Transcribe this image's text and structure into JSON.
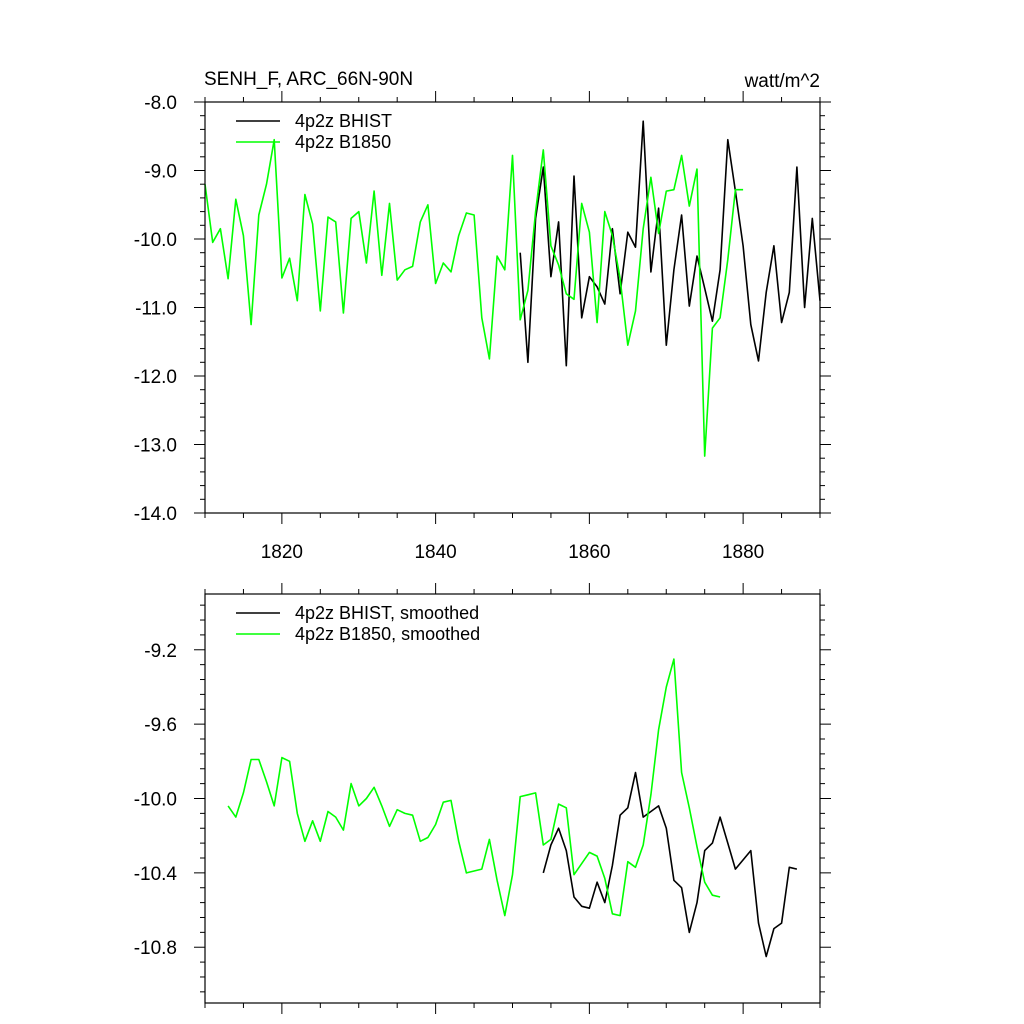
{
  "colors": {
    "bhist": "#000000",
    "b1850": "#00ff00"
  },
  "chart_data": [
    {
      "type": "line",
      "title": "SENH_F, ARC_66N-90N",
      "units": "watt/m^2",
      "xlabel": "",
      "ylabel": "",
      "xlim": [
        1810,
        1890
      ],
      "ylim": [
        -14.0,
        -8.0
      ],
      "xticks": [
        1820,
        1840,
        1860,
        1880
      ],
      "xtick_labels": [
        "1820",
        "1840",
        "1860",
        "1880"
      ],
      "yticks": [
        -8.0,
        -9.0,
        -10.0,
        -11.0,
        -12.0,
        -13.0,
        -14.0
      ],
      "ytick_labels": [
        "-8.0",
        "-9.0",
        "-10.0",
        "-11.0",
        "-12.0",
        "-13.0",
        "-14.0"
      ],
      "grid": false,
      "legend_position": "top-left",
      "series": [
        {
          "name": "4p2z BHIST",
          "color": "#000000",
          "x": [
            1851,
            1852,
            1853,
            1854,
            1855,
            1856,
            1857,
            1858,
            1859,
            1860,
            1861,
            1862,
            1863,
            1864,
            1865,
            1866,
            1867,
            1868,
            1869,
            1870,
            1871,
            1872,
            1873,
            1874,
            1875,
            1876,
            1877,
            1878,
            1879,
            1880,
            1881,
            1882,
            1883,
            1884,
            1885,
            1886,
            1887,
            1888,
            1889,
            1890
          ],
          "y": [
            -10.2,
            -11.8,
            -9.7,
            -8.95,
            -10.55,
            -9.75,
            -11.85,
            -9.08,
            -11.15,
            -10.55,
            -10.7,
            -10.95,
            -9.85,
            -10.8,
            -9.9,
            -10.12,
            -8.28,
            -10.48,
            -9.55,
            -11.55,
            -10.45,
            -9.65,
            -10.98,
            -10.25,
            -10.72,
            -11.2,
            -10.45,
            -8.55,
            -9.3,
            -10.1,
            -11.25,
            -11.78,
            -10.78,
            -10.1,
            -11.22,
            -10.78,
            -8.95,
            -11.0,
            -9.7,
            -10.9
          ]
        },
        {
          "name": "4p2z B1850",
          "color": "#00ff00",
          "x": [
            1810,
            1811,
            1812,
            1813,
            1814,
            1815,
            1816,
            1817,
            1818,
            1819,
            1820,
            1821,
            1822,
            1823,
            1824,
            1825,
            1826,
            1827,
            1828,
            1829,
            1830,
            1831,
            1832,
            1833,
            1834,
            1835,
            1836,
            1837,
            1838,
            1839,
            1840,
            1841,
            1842,
            1843,
            1844,
            1845,
            1846,
            1847,
            1848,
            1849,
            1850,
            1851,
            1852,
            1853,
            1854,
            1855,
            1856,
            1857,
            1858,
            1859,
            1860,
            1861,
            1862,
            1863,
            1864,
            1865,
            1866,
            1867,
            1868,
            1869,
            1870,
            1871,
            1872,
            1873,
            1874,
            1875,
            1876,
            1877,
            1878,
            1879,
            1880
          ],
          "y": [
            -9.2,
            -10.05,
            -9.85,
            -10.58,
            -9.42,
            -9.95,
            -11.25,
            -9.65,
            -9.2,
            -8.55,
            -10.57,
            -10.28,
            -10.9,
            -9.35,
            -9.78,
            -11.05,
            -9.68,
            -9.75,
            -11.08,
            -9.7,
            -9.6,
            -10.35,
            -9.3,
            -10.53,
            -9.48,
            -10.6,
            -10.45,
            -10.4,
            -9.75,
            -9.5,
            -10.65,
            -10.35,
            -10.48,
            -9.95,
            -9.62,
            -9.65,
            -11.15,
            -11.75,
            -10.25,
            -10.45,
            -8.78,
            -11.18,
            -10.75,
            -9.6,
            -8.7,
            -10.1,
            -10.38,
            -10.8,
            -10.88,
            -9.48,
            -9.9,
            -11.22,
            -9.6,
            -9.95,
            -10.58,
            -11.55,
            -11.05,
            -9.85,
            -9.1,
            -9.92,
            -9.3,
            -9.28,
            -8.78,
            -9.52,
            -8.98,
            -13.17,
            -11.3,
            -11.15,
            -10.3,
            -9.28,
            -9.28
          ]
        }
      ]
    },
    {
      "type": "line",
      "title": "",
      "xlabel": "",
      "ylabel": "",
      "xlim": [
        1810,
        1890
      ],
      "ylim": [
        -11.1,
        -8.9
      ],
      "xticks": [
        1820,
        1840,
        1860,
        1880
      ],
      "yticks": [
        -9.2,
        -9.6,
        -10.0,
        -10.4,
        -10.8
      ],
      "ytick_labels": [
        "-9.2",
        "-9.6",
        "-10.0",
        "-10.4",
        "-10.8"
      ],
      "grid": false,
      "legend_position": "top-left",
      "series": [
        {
          "name": "4p2z BHIST, smoothed",
          "color": "#000000",
          "x": [
            1854,
            1855,
            1856,
            1857,
            1858,
            1859,
            1860,
            1861,
            1862,
            1863,
            1864,
            1865,
            1866,
            1867,
            1868,
            1869,
            1870,
            1871,
            1872,
            1873,
            1874,
            1875,
            1876,
            1877,
            1878,
            1879,
            1880,
            1881,
            1882,
            1883,
            1884,
            1885,
            1886,
            1887
          ],
          "y": [
            -10.4,
            -10.25,
            -10.16,
            -10.28,
            -10.53,
            -10.58,
            -10.59,
            -10.45,
            -10.56,
            -10.36,
            -10.09,
            -10.05,
            -9.86,
            -10.1,
            -10.07,
            -10.04,
            -10.16,
            -10.44,
            -10.48,
            -10.72,
            -10.56,
            -10.28,
            -10.24,
            -10.1,
            -10.24,
            -10.38,
            -10.33,
            -10.28,
            -10.67,
            -10.85,
            -10.7,
            -10.67,
            -10.37,
            -10.38
          ]
        },
        {
          "name": "4p2z B1850, smoothed",
          "color": "#00ff00",
          "x": [
            1813,
            1814,
            1815,
            1816,
            1817,
            1818,
            1819,
            1820,
            1821,
            1822,
            1823,
            1824,
            1825,
            1826,
            1827,
            1828,
            1829,
            1830,
            1831,
            1832,
            1833,
            1834,
            1835,
            1836,
            1837,
            1838,
            1839,
            1840,
            1841,
            1842,
            1843,
            1844,
            1845,
            1846,
            1847,
            1848,
            1849,
            1850,
            1851,
            1852,
            1853,
            1854,
            1855,
            1856,
            1857,
            1858,
            1859,
            1860,
            1861,
            1862,
            1863,
            1864,
            1865,
            1866,
            1867,
            1868,
            1869,
            1870,
            1871,
            1872,
            1873,
            1874,
            1875,
            1876,
            1877
          ],
          "y": [
            -10.04,
            -10.1,
            -9.97,
            -9.79,
            -9.79,
            -9.91,
            -10.04,
            -9.78,
            -9.8,
            -10.08,
            -10.23,
            -10.12,
            -10.23,
            -10.07,
            -10.1,
            -10.17,
            -9.92,
            -10.04,
            -10.0,
            -9.94,
            -10.04,
            -10.15,
            -10.06,
            -10.08,
            -10.09,
            -10.23,
            -10.21,
            -10.14,
            -10.02,
            -10.01,
            -10.23,
            -10.4,
            -10.39,
            -10.38,
            -10.22,
            -10.44,
            -10.63,
            -10.41,
            -9.99,
            -9.98,
            -9.97,
            -10.25,
            -10.22,
            -10.03,
            -10.05,
            -10.41,
            -10.35,
            -10.29,
            -10.31,
            -10.43,
            -10.62,
            -10.63,
            -10.34,
            -10.37,
            -10.25,
            -9.98,
            -9.63,
            -9.4,
            -9.25,
            -9.86,
            -10.05,
            -10.26,
            -10.45,
            -10.52,
            -10.53
          ]
        }
      ]
    }
  ]
}
